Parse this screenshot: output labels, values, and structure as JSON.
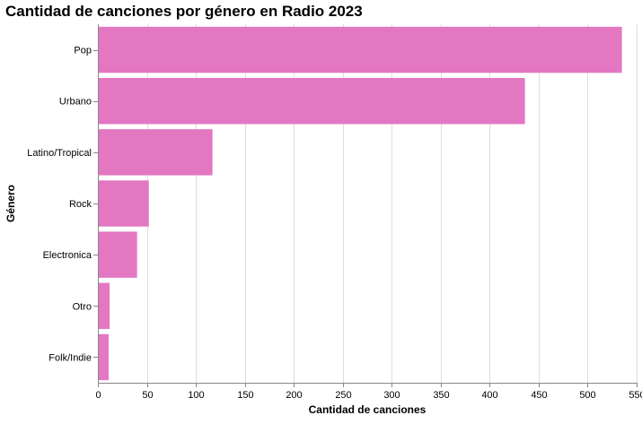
{
  "chart_data": {
    "type": "bar",
    "orientation": "horizontal",
    "title": "Cantidad de canciones por género en Radio 2023",
    "xlabel": "Cantidad de canciones",
    "ylabel": "Género",
    "categories": [
      "Pop",
      "Urbano",
      "Latino/Tropical",
      "Rock",
      "Electronica",
      "Otro",
      "Folk/Indie"
    ],
    "values": [
      535,
      436,
      117,
      52,
      40,
      12,
      11
    ],
    "xlim": [
      0,
      550
    ],
    "x_ticks": [
      0,
      50,
      100,
      150,
      200,
      250,
      300,
      350,
      400,
      450,
      500,
      550
    ],
    "bar_color": "#e377c2",
    "grid": true,
    "legend": "none"
  }
}
